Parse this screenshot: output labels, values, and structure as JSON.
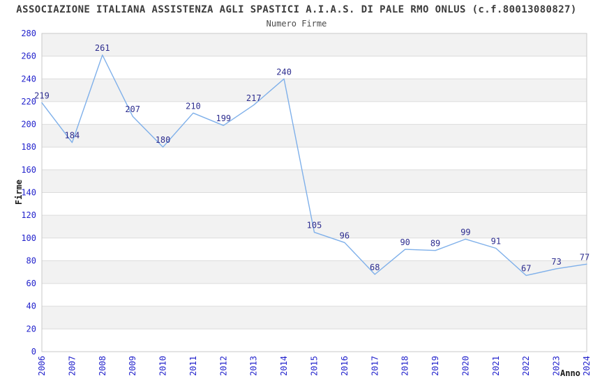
{
  "chart_data": {
    "type": "line",
    "title": "ASSOCIAZIONE ITALIANA ASSISTENZA AGLI SPASTICI A.I.A.S. DI PALE RMO ONLUS (c.f.80013080827)",
    "subtitle": "Numero Firme",
    "xlabel": "Anno",
    "ylabel": "Firme",
    "series_name": "Numero Firme",
    "categories": [
      "2006",
      "2007",
      "2008",
      "2009",
      "2010",
      "2011",
      "2012",
      "2013",
      "2014",
      "2015",
      "2016",
      "2017",
      "2018",
      "2019",
      "2020",
      "2021",
      "2022",
      "2023",
      "2024"
    ],
    "values": [
      219,
      184,
      261,
      207,
      180,
      210,
      199,
      217,
      240,
      105,
      96,
      68,
      90,
      89,
      99,
      91,
      67,
      73,
      77
    ],
    "ylim": [
      0,
      280
    ],
    "yticks": [
      0,
      20,
      40,
      60,
      80,
      100,
      120,
      140,
      160,
      180,
      200,
      220,
      240,
      260,
      280
    ],
    "grid": "horizontal-bands-alternating",
    "legend": "none",
    "show_point_labels": true,
    "colors": {
      "line": "#7fb0ea",
      "tick_label": "#2323cc",
      "data_label": "#2d2d8f",
      "band_gray": "#f2f2f2",
      "band_white": "#ffffff",
      "gridline": "#dcdcdc",
      "plot_border": "#c8c8c8",
      "title": "#3c3c3c",
      "axis_title": "#1a1a1a",
      "background": "#ffffff"
    }
  }
}
